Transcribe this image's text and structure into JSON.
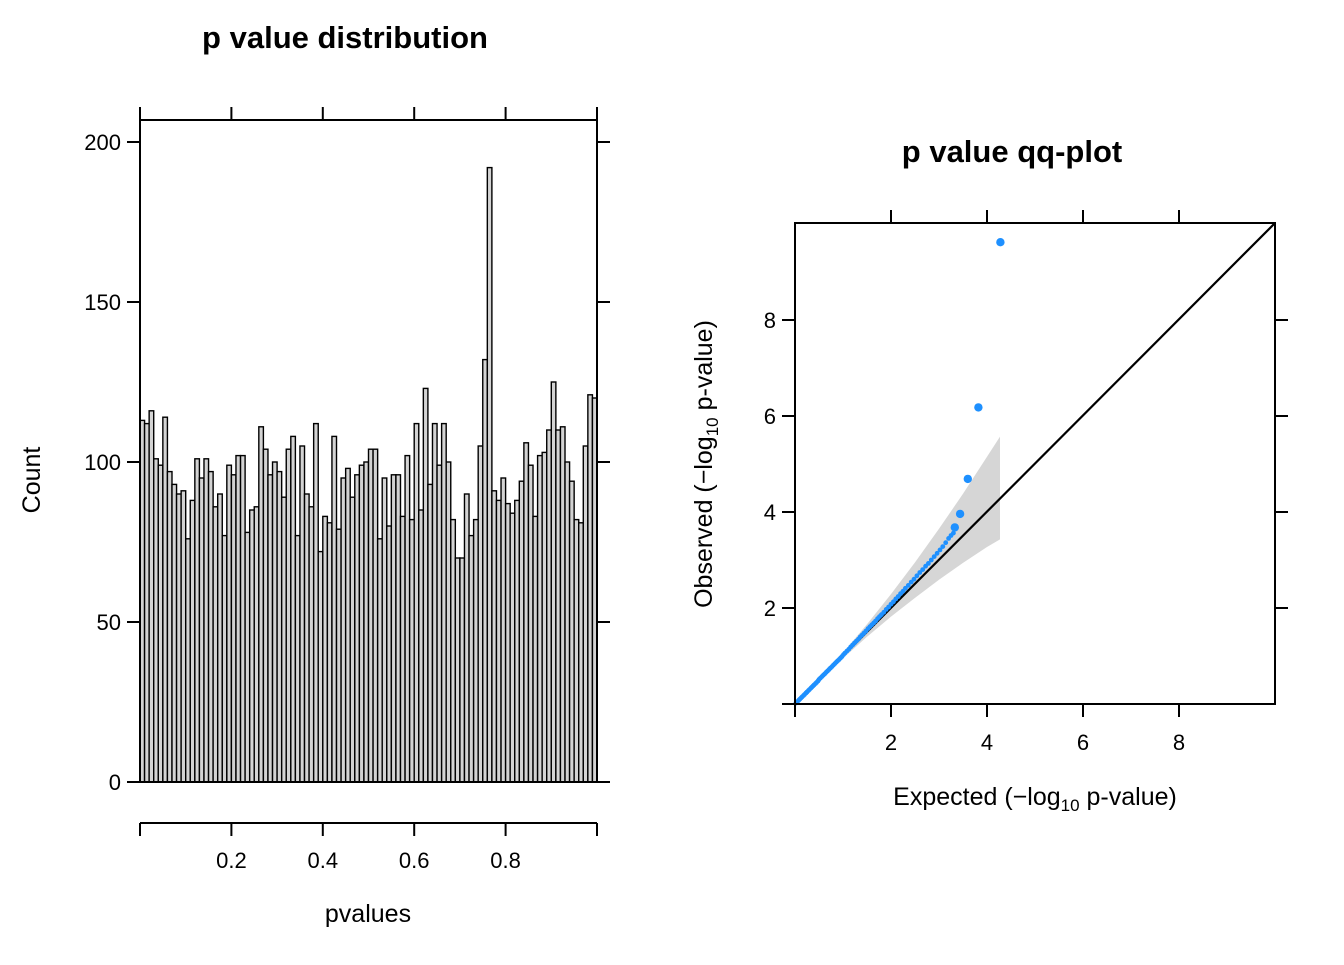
{
  "background": "#ffffff",
  "chart_data": [
    {
      "type": "bar",
      "title": "p value distribution",
      "xlabel": "pvalues",
      "ylabel": "Count",
      "xlim": [
        0,
        1
      ],
      "ylim": [
        0,
        207
      ],
      "bin_width": 0.01,
      "x_ticks": [
        0,
        0.2,
        0.4,
        0.6,
        0.8,
        1.0
      ],
      "x_tick_labels": [
        "0.2",
        "0.4",
        "0.6",
        "0.8"
      ],
      "x_tick_label_values": [
        0.2,
        0.4,
        0.6,
        0.8
      ],
      "y_ticks": [
        0,
        50,
        100,
        150,
        200
      ],
      "y_tick_labels": [
        "0",
        "50",
        "100",
        "150",
        "200"
      ],
      "bar_fill": "#d3d3d3",
      "bar_stroke": "#000000",
      "grid": false,
      "values": [
        113,
        112,
        116,
        101,
        99,
        114,
        97,
        93,
        90,
        91,
        76,
        88,
        101,
        95,
        101,
        97,
        86,
        90,
        77,
        99,
        96,
        102,
        102,
        78,
        85,
        86,
        111,
        104,
        96,
        100,
        97,
        89,
        104,
        108,
        77,
        105,
        90,
        86,
        112,
        72,
        83,
        81,
        108,
        79,
        95,
        98,
        89,
        96,
        99,
        100,
        104,
        104,
        76,
        95,
        80,
        96,
        96,
        83,
        102,
        82,
        112,
        85,
        123,
        93,
        112,
        99,
        112,
        100,
        82,
        70,
        70,
        90,
        77,
        82,
        105,
        132,
        192,
        91,
        88,
        95,
        87,
        84,
        88,
        94,
        106,
        99,
        83,
        102,
        103,
        110,
        125,
        110,
        111,
        100,
        94,
        82,
        81,
        105,
        121,
        120
      ]
    },
    {
      "type": "scatter",
      "title": "p value qq-plot",
      "xlabel_parts": {
        "prefix": "Expected (−log",
        "sub": "10",
        "suffix": " p-value)"
      },
      "ylabel_parts": {
        "prefix": "Observed (−log",
        "sub": "10",
        "suffix": " p-value)"
      },
      "xlim": [
        0,
        10
      ],
      "ylim": [
        0,
        10
      ],
      "x_ticks": [
        0,
        2,
        4,
        6,
        8
      ],
      "x_tick_labels": [
        "2",
        "4",
        "6",
        "8"
      ],
      "x_tick_label_values": [
        2,
        4,
        6,
        8
      ],
      "y_ticks": [
        0,
        2,
        4,
        6,
        8
      ],
      "y_tick_labels": [
        "2",
        "4",
        "6",
        "8"
      ],
      "y_tick_label_values": [
        2,
        4,
        6,
        8
      ],
      "point_color": "#1E90FF",
      "band_color": "#d6d6d6",
      "identity_line": true,
      "identity_line_color": "#000000",
      "grid": false,
      "legend": "none",
      "band": {
        "x": [
          0,
          0.5,
          1.0,
          1.5,
          2.0,
          2.5,
          3.0,
          3.5,
          4.0,
          4.27
        ],
        "upper": [
          0,
          0.52,
          1.07,
          1.66,
          2.29,
          2.95,
          3.65,
          4.38,
          5.15,
          5.57
        ],
        "lower": [
          0,
          0.49,
          0.95,
          1.4,
          1.82,
          2.21,
          2.59,
          2.94,
          3.27,
          3.43
        ]
      },
      "points": [
        [
          0.02,
          0.02
        ],
        [
          0.03,
          0.03
        ],
        [
          0.05,
          0.05
        ],
        [
          0.08,
          0.08
        ],
        [
          0.1,
          0.1
        ],
        [
          0.13,
          0.13
        ],
        [
          0.15,
          0.15
        ],
        [
          0.18,
          0.18
        ],
        [
          0.2,
          0.2
        ],
        [
          0.23,
          0.23
        ],
        [
          0.25,
          0.25
        ],
        [
          0.28,
          0.28
        ],
        [
          0.3,
          0.3
        ],
        [
          0.33,
          0.33
        ],
        [
          0.35,
          0.35
        ],
        [
          0.38,
          0.38
        ],
        [
          0.4,
          0.4
        ],
        [
          0.43,
          0.43
        ],
        [
          0.45,
          0.45
        ],
        [
          0.48,
          0.48
        ],
        [
          0.5,
          0.51
        ],
        [
          0.53,
          0.54
        ],
        [
          0.56,
          0.57
        ],
        [
          0.59,
          0.6
        ],
        [
          0.62,
          0.63
        ],
        [
          0.65,
          0.66
        ],
        [
          0.68,
          0.69
        ],
        [
          0.71,
          0.72
        ],
        [
          0.74,
          0.75
        ],
        [
          0.77,
          0.78
        ],
        [
          0.8,
          0.81
        ],
        [
          0.83,
          0.84
        ],
        [
          0.86,
          0.87
        ],
        [
          0.89,
          0.9
        ],
        [
          0.92,
          0.93
        ],
        [
          0.95,
          0.96
        ],
        [
          0.98,
          0.99
        ],
        [
          1.01,
          1.03
        ],
        [
          1.04,
          1.06
        ],
        [
          1.08,
          1.1
        ],
        [
          1.12,
          1.14
        ],
        [
          1.16,
          1.19
        ],
        [
          1.2,
          1.23
        ],
        [
          1.24,
          1.27
        ],
        [
          1.28,
          1.31
        ],
        [
          1.32,
          1.35
        ],
        [
          1.36,
          1.4
        ],
        [
          1.4,
          1.44
        ],
        [
          1.44,
          1.48
        ],
        [
          1.48,
          1.52
        ],
        [
          1.52,
          1.57
        ],
        [
          1.56,
          1.61
        ],
        [
          1.6,
          1.65
        ],
        [
          1.64,
          1.69
        ],
        [
          1.68,
          1.73
        ],
        [
          1.72,
          1.78
        ],
        [
          1.76,
          1.82
        ],
        [
          1.8,
          1.86
        ],
        [
          1.85,
          1.91
        ],
        [
          1.9,
          1.97
        ],
        [
          1.95,
          2.02
        ],
        [
          2.0,
          2.08
        ],
        [
          2.05,
          2.13
        ],
        [
          2.1,
          2.19
        ],
        [
          2.15,
          2.24
        ],
        [
          2.2,
          2.3
        ],
        [
          2.25,
          2.35
        ],
        [
          2.3,
          2.41
        ],
        [
          2.36,
          2.47
        ],
        [
          2.42,
          2.54
        ],
        [
          2.48,
          2.6
        ],
        [
          2.54,
          2.67
        ],
        [
          2.6,
          2.74
        ],
        [
          2.66,
          2.8
        ],
        [
          2.72,
          2.87
        ],
        [
          2.78,
          2.93
        ],
        [
          2.84,
          3.0
        ],
        [
          2.9,
          3.07
        ],
        [
          2.96,
          3.14
        ],
        [
          3.02,
          3.21
        ],
        [
          3.08,
          3.28
        ],
        [
          3.14,
          3.36
        ],
        [
          3.2,
          3.45
        ],
        [
          3.25,
          3.51
        ],
        [
          3.3,
          3.56
        ]
      ],
      "outlier_points": [
        [
          3.33,
          3.68
        ],
        [
          3.44,
          3.96
        ],
        [
          3.6,
          4.69
        ],
        [
          3.82,
          6.18
        ],
        [
          4.28,
          9.62
        ]
      ]
    }
  ]
}
